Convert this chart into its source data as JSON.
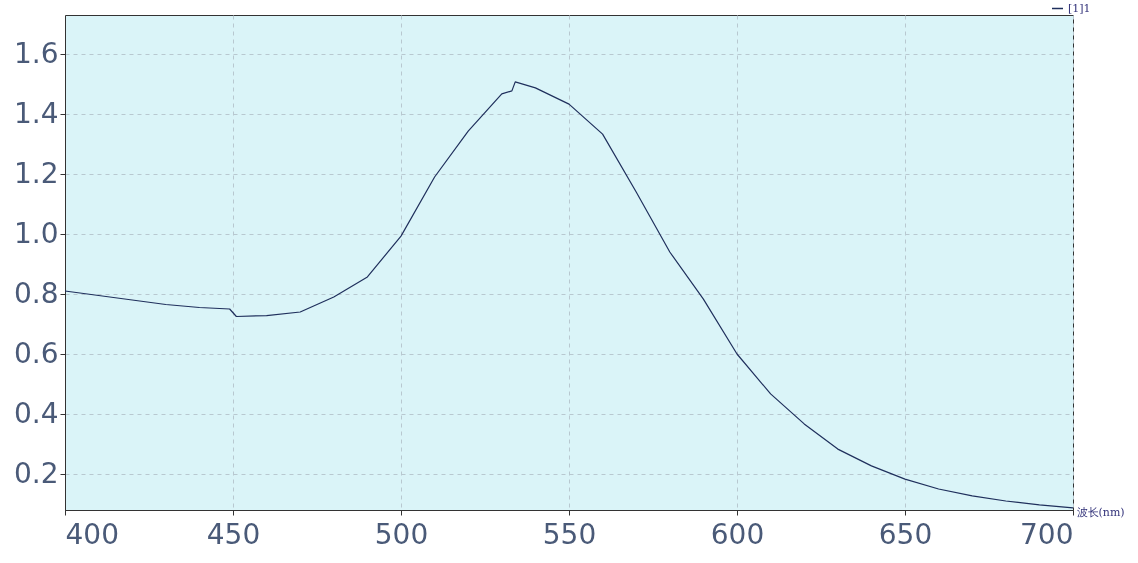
{
  "chart_data": {
    "type": "line",
    "xlabel": "波长(nm)",
    "legend": "top right",
    "grid": true,
    "marker": "none",
    "line_style": "solid",
    "xlim": [
      400,
      700
    ],
    "xticks": [
      400,
      450,
      500,
      550,
      600,
      650,
      700
    ],
    "ylim": [
      0.08,
      1.73
    ],
    "yticks": [
      0.2,
      0.4,
      0.6,
      0.8,
      {
        "value": 1,
        "label": "1.0"
      },
      1.2,
      1.4,
      1.6
    ],
    "x": [
      400,
      410,
      420,
      430,
      440,
      449,
      451,
      460,
      470,
      480,
      490,
      500,
      510,
      520,
      530,
      533,
      534,
      540,
      550,
      560,
      570,
      580,
      590,
      600,
      610,
      620,
      630,
      640,
      650,
      660,
      670,
      680,
      690,
      700
    ],
    "series": [
      {
        "name": "[1]1",
        "color": "#1f2f5c",
        "values": [
          0.81,
          0.795,
          0.78,
          0.765,
          0.755,
          0.75,
          0.725,
          0.728,
          0.74,
          0.79,
          0.857,
          0.993,
          1.19,
          1.343,
          1.467,
          1.477,
          1.507,
          1.487,
          1.433,
          1.333,
          1.14,
          0.94,
          0.783,
          0.6,
          0.467,
          0.367,
          0.283,
          0.227,
          0.183,
          0.15,
          0.127,
          0.11,
          0.097,
          0.087
        ]
      }
    ]
  }
}
